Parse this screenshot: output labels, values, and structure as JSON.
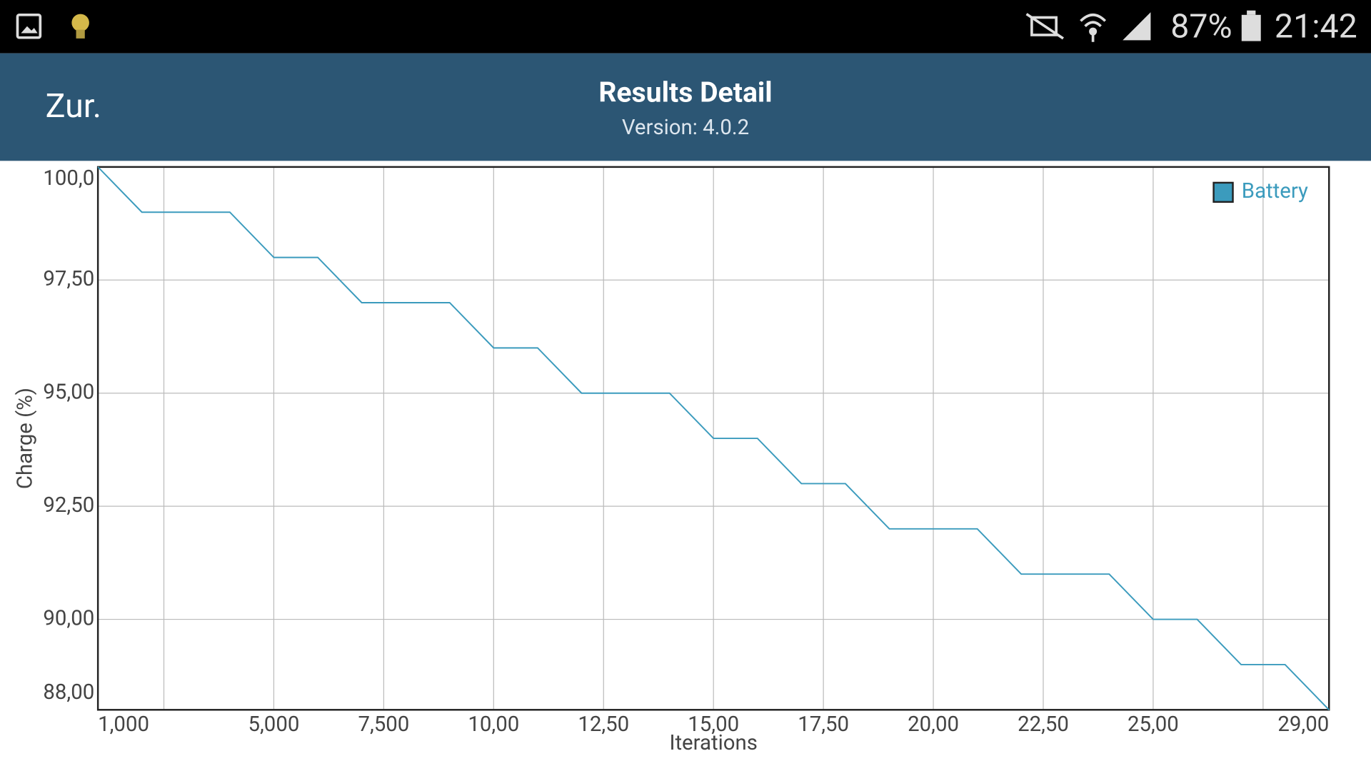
{
  "status_bar": {
    "battery": "87%",
    "time": "21:42"
  },
  "header": {
    "back": "Zur.",
    "title": "Results Detail",
    "subtitle": "Version: 4.0.2"
  },
  "chart_data": {
    "type": "line",
    "x_label": "Iterations",
    "y_label": "Charge (%)",
    "x": [
      1000,
      2000,
      3000,
      4000,
      5000,
      6000,
      7000,
      8000,
      9000,
      10000,
      11000,
      12000,
      13000,
      14000,
      15000,
      16000,
      17000,
      18000,
      19000,
      20000,
      21000,
      22000,
      23000,
      24000,
      25000,
      26000,
      27000,
      28000,
      29000
    ],
    "series": [
      {
        "name": "Battery",
        "color": "#3b9bbd",
        "values": [
          100,
          99,
          99,
          99,
          98,
          98,
          97,
          97,
          97,
          96,
          96,
          95,
          95,
          95,
          94,
          94,
          93,
          93,
          92,
          92,
          92,
          91,
          91,
          91,
          90,
          90,
          89,
          89,
          88
        ]
      }
    ],
    "xlim": [
      1000,
      29000
    ],
    "ylim": [
      88,
      100
    ],
    "xticks": [
      {
        "value": 1000,
        "label": "1,000"
      },
      {
        "value": 2500,
        "label": null
      },
      {
        "value": 5000,
        "label": "5,000"
      },
      {
        "value": 7500,
        "label": "7,500"
      },
      {
        "value": 10000,
        "label": "10,00"
      },
      {
        "value": 12500,
        "label": "12,50"
      },
      {
        "value": 15000,
        "label": "15,00"
      },
      {
        "value": 17500,
        "label": "17,50"
      },
      {
        "value": 20000,
        "label": "20,00"
      },
      {
        "value": 22500,
        "label": "22,50"
      },
      {
        "value": 25000,
        "label": "25,00"
      },
      {
        "value": 27500,
        "label": null
      },
      {
        "value": 29000,
        "label": "29,00"
      }
    ],
    "yticks": [
      {
        "value": 88,
        "label": "88,00"
      },
      {
        "value": 90,
        "label": "90,00"
      },
      {
        "value": 92.5,
        "label": "92,50"
      },
      {
        "value": 95,
        "label": "95,00"
      },
      {
        "value": 97.5,
        "label": "97,50"
      },
      {
        "value": 100,
        "label": "100,0"
      }
    ],
    "grid": true,
    "legend": "upper right"
  }
}
